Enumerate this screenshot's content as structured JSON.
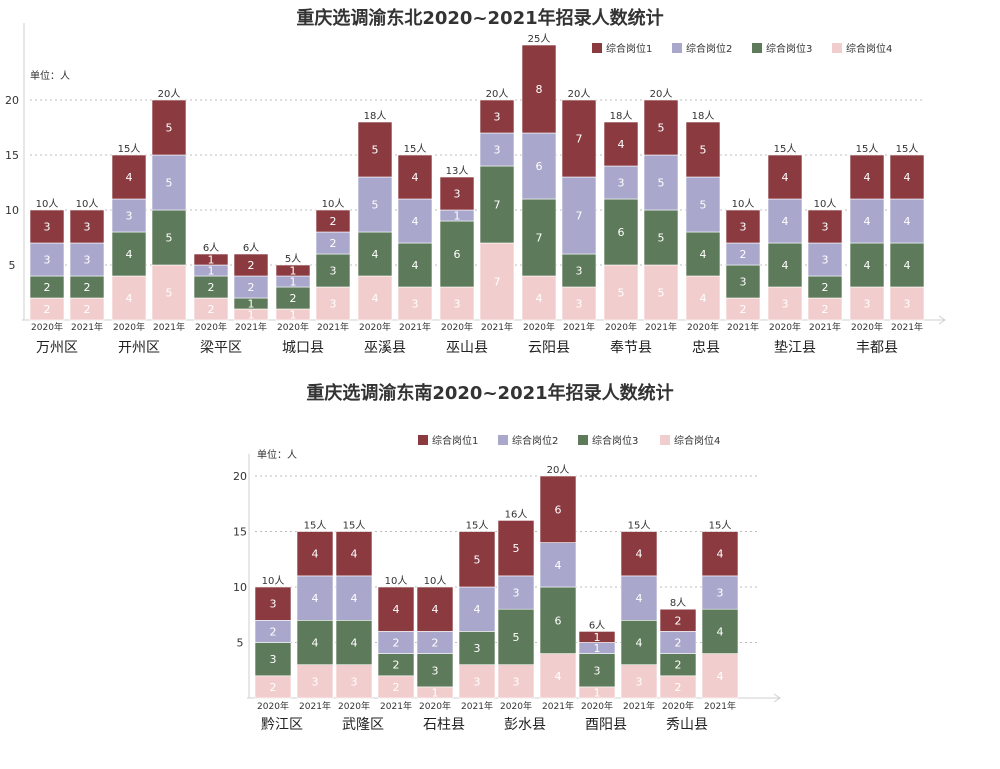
{
  "chart_data": [
    {
      "type": "bar",
      "stacked": true,
      "title": "重庆选调渝东北2020~2021年招录人数统计",
      "unit_label": "单位：人",
      "ylim": [
        0,
        25
      ],
      "yticks": [
        5,
        10,
        15,
        20
      ],
      "grid": true,
      "legend_position": "top-right",
      "series": [
        {
          "name": "综合岗位1",
          "color": "#8b3a40"
        },
        {
          "name": "综合岗位2",
          "color": "#a9a8cc"
        },
        {
          "name": "综合岗位3",
          "color": "#5d7a5a"
        },
        {
          "name": "综合岗位4",
          "color": "#f2cdcd"
        }
      ],
      "groups": [
        {
          "name": "万州区",
          "years": [
            {
              "year": "2020年",
              "total": "10人",
              "values": [
                3,
                3,
                2,
                2
              ]
            },
            {
              "year": "2021年",
              "total": "10人",
              "values": [
                3,
                3,
                2,
                2
              ]
            }
          ]
        },
        {
          "name": "开州区",
          "years": [
            {
              "year": "2020年",
              "total": "15人",
              "values": [
                4,
                3,
                4,
                4
              ]
            },
            {
              "year": "2021年",
              "total": "20人",
              "values": [
                5,
                5,
                5,
                5
              ]
            }
          ]
        },
        {
          "name": "梁平区",
          "years": [
            {
              "year": "2020年",
              "total": "6人",
              "values": [
                1,
                1,
                2,
                2
              ]
            },
            {
              "year": "2021年",
              "total": "6人",
              "values": [
                2,
                2,
                1,
                1
              ]
            }
          ]
        },
        {
          "name": "城口县",
          "years": [
            {
              "year": "2020年",
              "total": "5人",
              "values": [
                1,
                1,
                2,
                1
              ]
            },
            {
              "year": "2021年",
              "total": "10人",
              "values": [
                2,
                2,
                3,
                3
              ]
            }
          ]
        },
        {
          "name": "巫溪县",
          "years": [
            {
              "year": "2020年",
              "total": "18人",
              "values": [
                5,
                5,
                4,
                4
              ]
            },
            {
              "year": "2021年",
              "total": "15人",
              "values": [
                4,
                4,
                4,
                3
              ]
            }
          ]
        },
        {
          "name": "巫山县",
          "years": [
            {
              "year": "2020年",
              "total": "13人",
              "values": [
                3,
                1,
                6,
                3
              ]
            },
            {
              "year": "2021年",
              "total": "20人",
              "values": [
                3,
                3,
                7,
                7
              ]
            }
          ]
        },
        {
          "name": "云阳县",
          "years": [
            {
              "year": "2020年",
              "total": "25人",
              "values": [
                8,
                6,
                7,
                4
              ]
            },
            {
              "year": "2021年",
              "total": "20人",
              "values": [
                7,
                7,
                3,
                3
              ]
            }
          ]
        },
        {
          "name": "奉节县",
          "years": [
            {
              "year": "2020年",
              "total": "18人",
              "values": [
                4,
                3,
                6,
                5
              ]
            },
            {
              "year": "2021年",
              "total": "20人",
              "values": [
                5,
                5,
                5,
                5
              ]
            }
          ]
        },
        {
          "name": "忠县",
          "years": [
            {
              "year": "2020年",
              "total": "18人",
              "values": [
                5,
                5,
                4,
                4
              ]
            },
            {
              "year": "2021年",
              "total": "10人",
              "values": [
                3,
                2,
                3,
                2
              ]
            }
          ]
        },
        {
          "name": "垫江县",
          "years": [
            {
              "year": "2020年",
              "total": "15人",
              "values": [
                4,
                4,
                4,
                3
              ]
            },
            {
              "year": "2021年",
              "total": "10人",
              "values": [
                3,
                3,
                2,
                2
              ]
            }
          ]
        },
        {
          "name": "丰都县",
          "years": [
            {
              "year": "2020年",
              "total": "15人",
              "values": [
                4,
                4,
                4,
                3
              ]
            },
            {
              "year": "2021年",
              "total": "15人",
              "values": [
                4,
                4,
                4,
                3
              ]
            }
          ]
        }
      ]
    },
    {
      "type": "bar",
      "stacked": true,
      "title": "重庆选调渝东南2020~2021年招录人数统计",
      "unit_label": "单位：人",
      "ylim": [
        0,
        20
      ],
      "yticks": [
        5,
        10,
        15,
        20
      ],
      "grid": true,
      "legend_position": "top-right",
      "series": [
        {
          "name": "综合岗位1",
          "color": "#8b3a40"
        },
        {
          "name": "综合岗位2",
          "color": "#a9a8cc"
        },
        {
          "name": "综合岗位3",
          "color": "#5d7a5a"
        },
        {
          "name": "综合岗位4",
          "color": "#f2cdcd"
        }
      ],
      "groups": [
        {
          "name": "黔江区",
          "years": [
            {
              "year": "2020年",
              "total": "10人",
              "values": [
                3,
                2,
                3,
                2
              ]
            },
            {
              "year": "2021年",
              "total": "15人",
              "values": [
                4,
                4,
                4,
                3
              ]
            }
          ]
        },
        {
          "name": "武隆区",
          "years": [
            {
              "year": "2020年",
              "total": "15人",
              "values": [
                4,
                4,
                4,
                3
              ]
            },
            {
              "year": "2021年",
              "total": "10人",
              "values": [
                4,
                2,
                2,
                2
              ]
            }
          ]
        },
        {
          "name": "石柱县",
          "years": [
            {
              "year": "2020年",
              "total": "10人",
              "values": [
                4,
                2,
                3,
                1
              ]
            },
            {
              "year": "2021年",
              "total": "15人",
              "values": [
                5,
                4,
                3,
                3
              ]
            }
          ]
        },
        {
          "name": "彭水县",
          "years": [
            {
              "year": "2020年",
              "total": "16人",
              "values": [
                5,
                3,
                5,
                3
              ]
            },
            {
              "year": "2021年",
              "total": "20人",
              "values": [
                6,
                4,
                6,
                4
              ]
            }
          ]
        },
        {
          "name": "酉阳县",
          "years": [
            {
              "year": "2020年",
              "total": "6人",
              "values": [
                1,
                1,
                3,
                1
              ]
            },
            {
              "year": "2021年",
              "total": "15人",
              "values": [
                4,
                4,
                4,
                3
              ]
            }
          ]
        },
        {
          "name": "秀山县",
          "years": [
            {
              "year": "2020年",
              "total": "8人",
              "values": [
                2,
                2,
                2,
                2
              ]
            },
            {
              "year": "2021年",
              "total": "15人",
              "values": [
                4,
                3,
                4,
                4
              ]
            }
          ]
        }
      ]
    }
  ]
}
